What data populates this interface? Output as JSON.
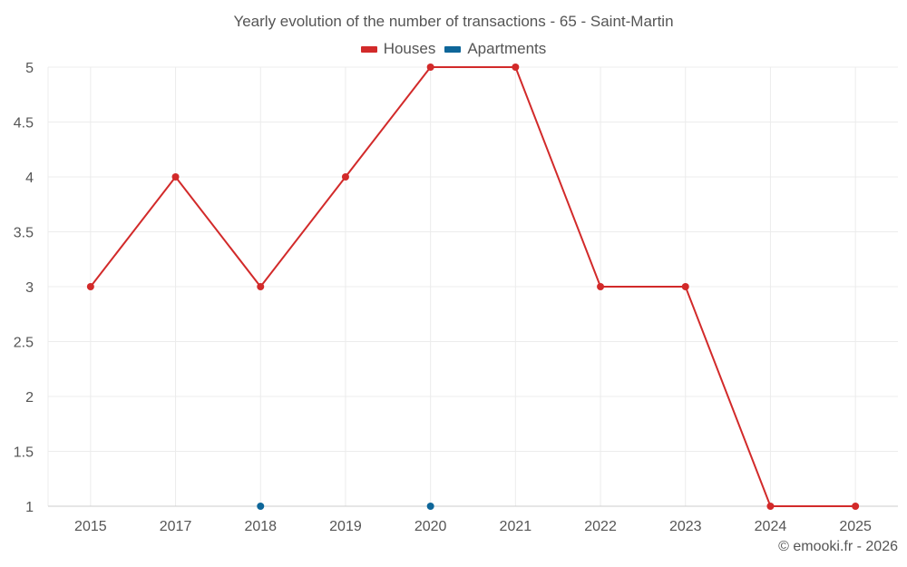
{
  "chart_data": {
    "type": "line",
    "title": "Yearly evolution of the number of transactions - 65 - Saint-Martin",
    "categories": [
      "2015",
      "2017",
      "2018",
      "2019",
      "2020",
      "2021",
      "2022",
      "2023",
      "2024",
      "2025"
    ],
    "series": [
      {
        "name": "Houses",
        "color": "#d22a2a",
        "values": [
          3,
          4,
          3,
          4,
          5,
          5,
          3,
          3,
          1,
          1
        ]
      },
      {
        "name": "Apartments",
        "color": "#0e6699",
        "values": [
          null,
          null,
          1,
          null,
          1,
          null,
          null,
          null,
          null,
          null
        ]
      }
    ],
    "yticks": [
      "1",
      "1.5",
      "2",
      "2.5",
      "3",
      "3.5",
      "4",
      "4.5",
      "5"
    ],
    "ylim": [
      1,
      5
    ],
    "xlabel": "",
    "ylabel": "",
    "grid": true,
    "legend_position": "top-center"
  },
  "credit": "© emooki.fr - 2026"
}
